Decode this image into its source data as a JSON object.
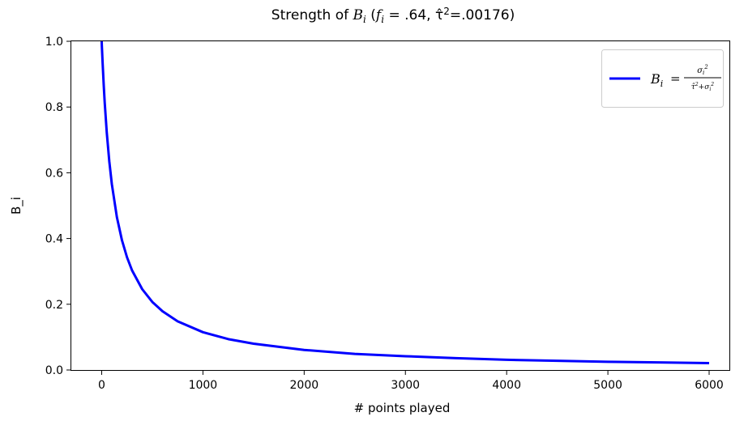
{
  "chart_data": {
    "type": "line",
    "title": "Strength of B_i (f_i = .64, τ̂²=.00176)",
    "title_parts": {
      "prefix": "Strength of ",
      "b": "B",
      "i": "i",
      "mid": " (",
      "f": "f",
      "f_sub": "i",
      "f_eq": " = .64, ",
      "tau": "τ̂",
      "tau_sup": "2",
      "tau_eq": "=.00176)"
    },
    "xlabel": "# points played",
    "ylabel": "B_i",
    "xlim": [
      -300,
      6200
    ],
    "ylim": [
      0,
      1.0
    ],
    "xticks": [
      0,
      1000,
      2000,
      3000,
      4000,
      5000,
      6000
    ],
    "xtick_labels": [
      "0",
      "1000",
      "2000",
      "3000",
      "4000",
      "5000",
      "6000"
    ],
    "yticks": [
      0.0,
      0.2,
      0.4,
      0.6,
      0.8,
      1.0
    ],
    "ytick_labels": [
      "0.0",
      "0.2",
      "0.4",
      "0.6",
      "0.8",
      "1.0"
    ],
    "grid": false,
    "legend_position": "top-right",
    "series": [
      {
        "name": "B_i = σ_i² / (τ̂² + σ_i²)",
        "color": "#0000ff",
        "x": [
          1,
          5,
          10,
          20,
          30,
          50,
          75,
          100,
          150,
          200,
          250,
          300,
          400,
          500,
          600,
          750,
          1000,
          1250,
          1500,
          2000,
          2500,
          3000,
          3500,
          4000,
          4500,
          5000,
          5500,
          6000
        ],
        "y": [
          0.99,
          0.963,
          0.929,
          0.867,
          0.813,
          0.723,
          0.635,
          0.566,
          0.465,
          0.395,
          0.343,
          0.303,
          0.246,
          0.207,
          0.179,
          0.148,
          0.115,
          0.094,
          0.08,
          0.061,
          0.049,
          0.042,
          0.036,
          0.031,
          0.028,
          0.025,
          0.023,
          0.021
        ]
      }
    ]
  },
  "legend": {
    "b": "B",
    "i": "i",
    "eq": "=",
    "num": "σ",
    "num_sub": "i",
    "num_sup": "2",
    "den_tau": "τ̂",
    "den_tau_sup": "2",
    "den_plus": "+",
    "den_sigma": "σ",
    "den_sigma_sub": "i",
    "den_sigma_sup": "2"
  },
  "colors": {
    "line": "#0000ff",
    "axis": "#000000",
    "legend_border": "#cccccc"
  }
}
